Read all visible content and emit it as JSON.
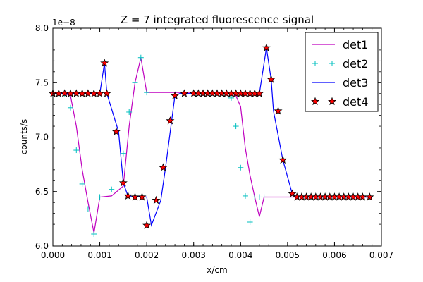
{
  "chart_data": {
    "type": "line",
    "title": "Z = 7 integrated fluorescence signal",
    "xlabel": "x/cm",
    "ylabel": "counts/s",
    "y_multiplier_label": "1e−8",
    "xlim": [
      0.0,
      0.007
    ],
    "ylim": [
      6.0,
      8.0
    ],
    "x_ticks": [
      0.0,
      0.001,
      0.002,
      0.003,
      0.004,
      0.005,
      0.006,
      0.007
    ],
    "x_tick_labels": [
      "0.000",
      "0.001",
      "0.002",
      "0.003",
      "0.004",
      "0.005",
      "0.006",
      "0.007"
    ],
    "y_ticks": [
      6.0,
      6.5,
      7.0,
      7.5,
      8.0
    ],
    "y_tick_labels": [
      "6.0",
      "6.5",
      "7.0",
      "7.5",
      "8.0"
    ],
    "grid": false,
    "legend_position": "top-right",
    "series": [
      {
        "name": "det1",
        "style": "line",
        "color": "#bf00bf",
        "x": [
          0.0,
          0.000125,
          0.00025,
          0.000375,
          0.0005,
          0.000625,
          0.00075,
          0.000875,
          0.001,
          0.00125,
          0.0015,
          0.001625,
          0.00175,
          0.001875,
          0.002,
          0.0038,
          0.0039,
          0.004,
          0.0041,
          0.0042,
          0.0043,
          0.0044,
          0.0045,
          0.0055,
          0.00675
        ],
        "y": [
          7.4,
          7.4,
          7.4,
          7.38,
          7.1,
          6.7,
          6.4,
          6.12,
          6.45,
          6.46,
          6.55,
          7.1,
          7.5,
          7.73,
          7.41,
          7.41,
          7.38,
          7.28,
          6.9,
          6.65,
          6.45,
          6.27,
          6.45,
          6.45,
          6.45
        ]
      },
      {
        "name": "det2",
        "style": "plus",
        "color": "#00bfbf",
        "x": [
          0.0,
          0.000125,
          0.00025,
          0.000375,
          0.0005,
          0.000625,
          0.00075,
          0.000875,
          0.001,
          0.00125,
          0.0015,
          0.001625,
          0.00175,
          0.001875,
          0.002,
          0.0038,
          0.0039,
          0.004,
          0.0041,
          0.0042,
          0.0043,
          0.0044,
          0.0045,
          0.0055,
          0.00675
        ],
        "y": [
          7.4,
          7.4,
          7.4,
          7.27,
          6.88,
          6.57,
          6.34,
          6.11,
          6.45,
          6.52,
          6.85,
          7.23,
          7.5,
          7.73,
          7.41,
          7.36,
          7.1,
          6.72,
          6.46,
          6.22,
          6.45,
          6.45,
          6.45,
          6.45,
          6.45
        ]
      },
      {
        "name": "det3",
        "style": "line",
        "color": "#0000ff",
        "x": [
          0.0,
          0.001,
          0.0011,
          0.00115,
          0.0014,
          0.0015,
          0.0016,
          0.002,
          0.0021,
          0.0023,
          0.0024,
          0.0026,
          0.0027,
          0.0042,
          0.0044,
          0.00455,
          0.00465,
          0.0047,
          0.0049,
          0.0051,
          0.0052,
          0.00675
        ],
        "y": [
          7.4,
          7.4,
          7.68,
          7.4,
          7.05,
          6.58,
          6.46,
          6.45,
          6.19,
          6.42,
          6.72,
          7.38,
          7.4,
          7.4,
          7.4,
          7.82,
          7.53,
          7.24,
          6.79,
          6.48,
          6.45,
          6.45
        ]
      },
      {
        "name": "det4",
        "style": "star",
        "color": "#ff0000",
        "x": [
          0.0,
          0.000125,
          0.00025,
          0.000375,
          0.0005,
          0.000625,
          0.00075,
          0.000875,
          0.001,
          0.0011,
          0.00115,
          0.00135,
          0.0015,
          0.0016,
          0.00175,
          0.0019,
          0.002,
          0.0022,
          0.00235,
          0.0025,
          0.0026,
          0.0028,
          0.003,
          0.0031,
          0.0032,
          0.0033,
          0.0034,
          0.0035,
          0.0036,
          0.0037,
          0.0038,
          0.0039,
          0.004,
          0.0041,
          0.0042,
          0.0043,
          0.0044,
          0.00455,
          0.00465,
          0.0048,
          0.0049,
          0.0051,
          0.0052,
          0.0053,
          0.0054,
          0.0055,
          0.0056,
          0.0057,
          0.0058,
          0.0059,
          0.006,
          0.0061,
          0.0062,
          0.0063,
          0.0064,
          0.0065,
          0.0066,
          0.00675
        ],
        "y": [
          7.4,
          7.4,
          7.4,
          7.4,
          7.4,
          7.4,
          7.4,
          7.4,
          7.4,
          7.68,
          7.4,
          7.05,
          6.58,
          6.46,
          6.45,
          6.45,
          6.19,
          6.42,
          6.72,
          7.15,
          7.38,
          7.4,
          7.4,
          7.4,
          7.4,
          7.4,
          7.4,
          7.4,
          7.4,
          7.4,
          7.4,
          7.4,
          7.4,
          7.4,
          7.4,
          7.4,
          7.4,
          7.82,
          7.53,
          7.24,
          6.79,
          6.48,
          6.45,
          6.45,
          6.45,
          6.45,
          6.45,
          6.45,
          6.45,
          6.45,
          6.45,
          6.45,
          6.45,
          6.45,
          6.45,
          6.45,
          6.45,
          6.45
        ]
      }
    ]
  }
}
